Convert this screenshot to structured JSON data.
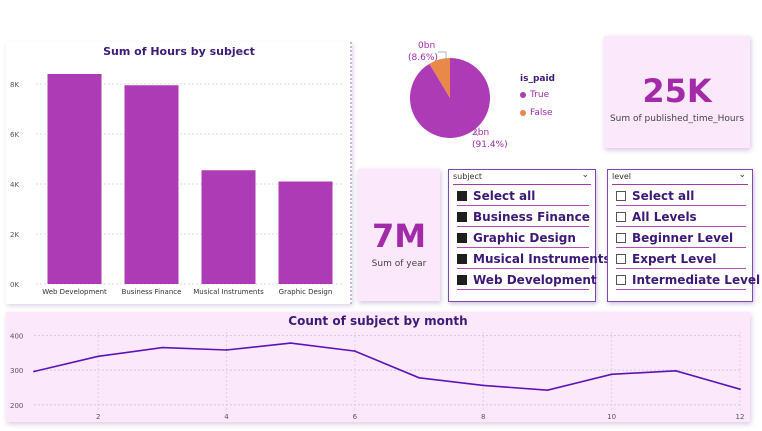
{
  "bar_chart": {
    "title": "Sum of Hours by subject",
    "y_ticks": [
      "0K",
      "2K",
      "4K",
      "6K",
      "8K"
    ],
    "bar_color": "#ad3bb5"
  },
  "pie_chart": {
    "legend_title": "is_paid",
    "legend": [
      {
        "label": "True",
        "color": "#ad3bb5"
      },
      {
        "label": "False",
        "color": "#e8894a"
      }
    ],
    "label_false_value": "0bn",
    "label_false_pct": "(8.6%)",
    "label_true_value": "2bn",
    "label_true_pct": "(91.4%)"
  },
  "kpi_published": {
    "value": "25K",
    "label": "Sum of published_time_Hours"
  },
  "kpi_year": {
    "value": "7M",
    "label": "Sum of year"
  },
  "subject_slicer": {
    "header": "subject",
    "items": [
      "Select all",
      "Business Finance",
      "Graphic Design",
      "Musical Instruments",
      "Web Development"
    ]
  },
  "level_slicer": {
    "header": "level",
    "items": [
      "Select all",
      "All Levels",
      "Beginner Level",
      "Expert Level",
      "Intermediate Level"
    ]
  },
  "line_chart": {
    "title": "Count of subject by month",
    "line_color": "#5a14b8"
  },
  "chart_data": [
    {
      "type": "bar",
      "title": "Sum of Hours by subject",
      "categories": [
        "Web Development",
        "Business Finance",
        "Musical Instruments",
        "Graphic Design"
      ],
      "values": [
        8400,
        7950,
        4550,
        4100
      ],
      "ylim": [
        0,
        8800
      ],
      "yticks": [
        0,
        2000,
        4000,
        6000,
        8000
      ],
      "grid": true
    },
    {
      "type": "pie",
      "legend_title": "is_paid",
      "categories": [
        "True",
        "False"
      ],
      "values": [
        91.4,
        8.6
      ],
      "labels": [
        "2bn (91.4%)",
        "0bn (8.6%)"
      ],
      "legend": "right"
    },
    {
      "type": "line",
      "title": "Count of subject by month",
      "x": [
        1,
        2,
        3,
        4,
        5,
        6,
        7,
        8,
        9,
        10,
        11,
        12
      ],
      "values": [
        296,
        340,
        365,
        358,
        378,
        355,
        278,
        256,
        242,
        288,
        298,
        245
      ],
      "xticks": [
        2,
        4,
        6,
        8,
        10,
        12
      ],
      "yticks": [
        200,
        300,
        400
      ],
      "ylim": [
        185,
        410
      ],
      "xlim": [
        1,
        12
      ],
      "grid": true
    }
  ]
}
